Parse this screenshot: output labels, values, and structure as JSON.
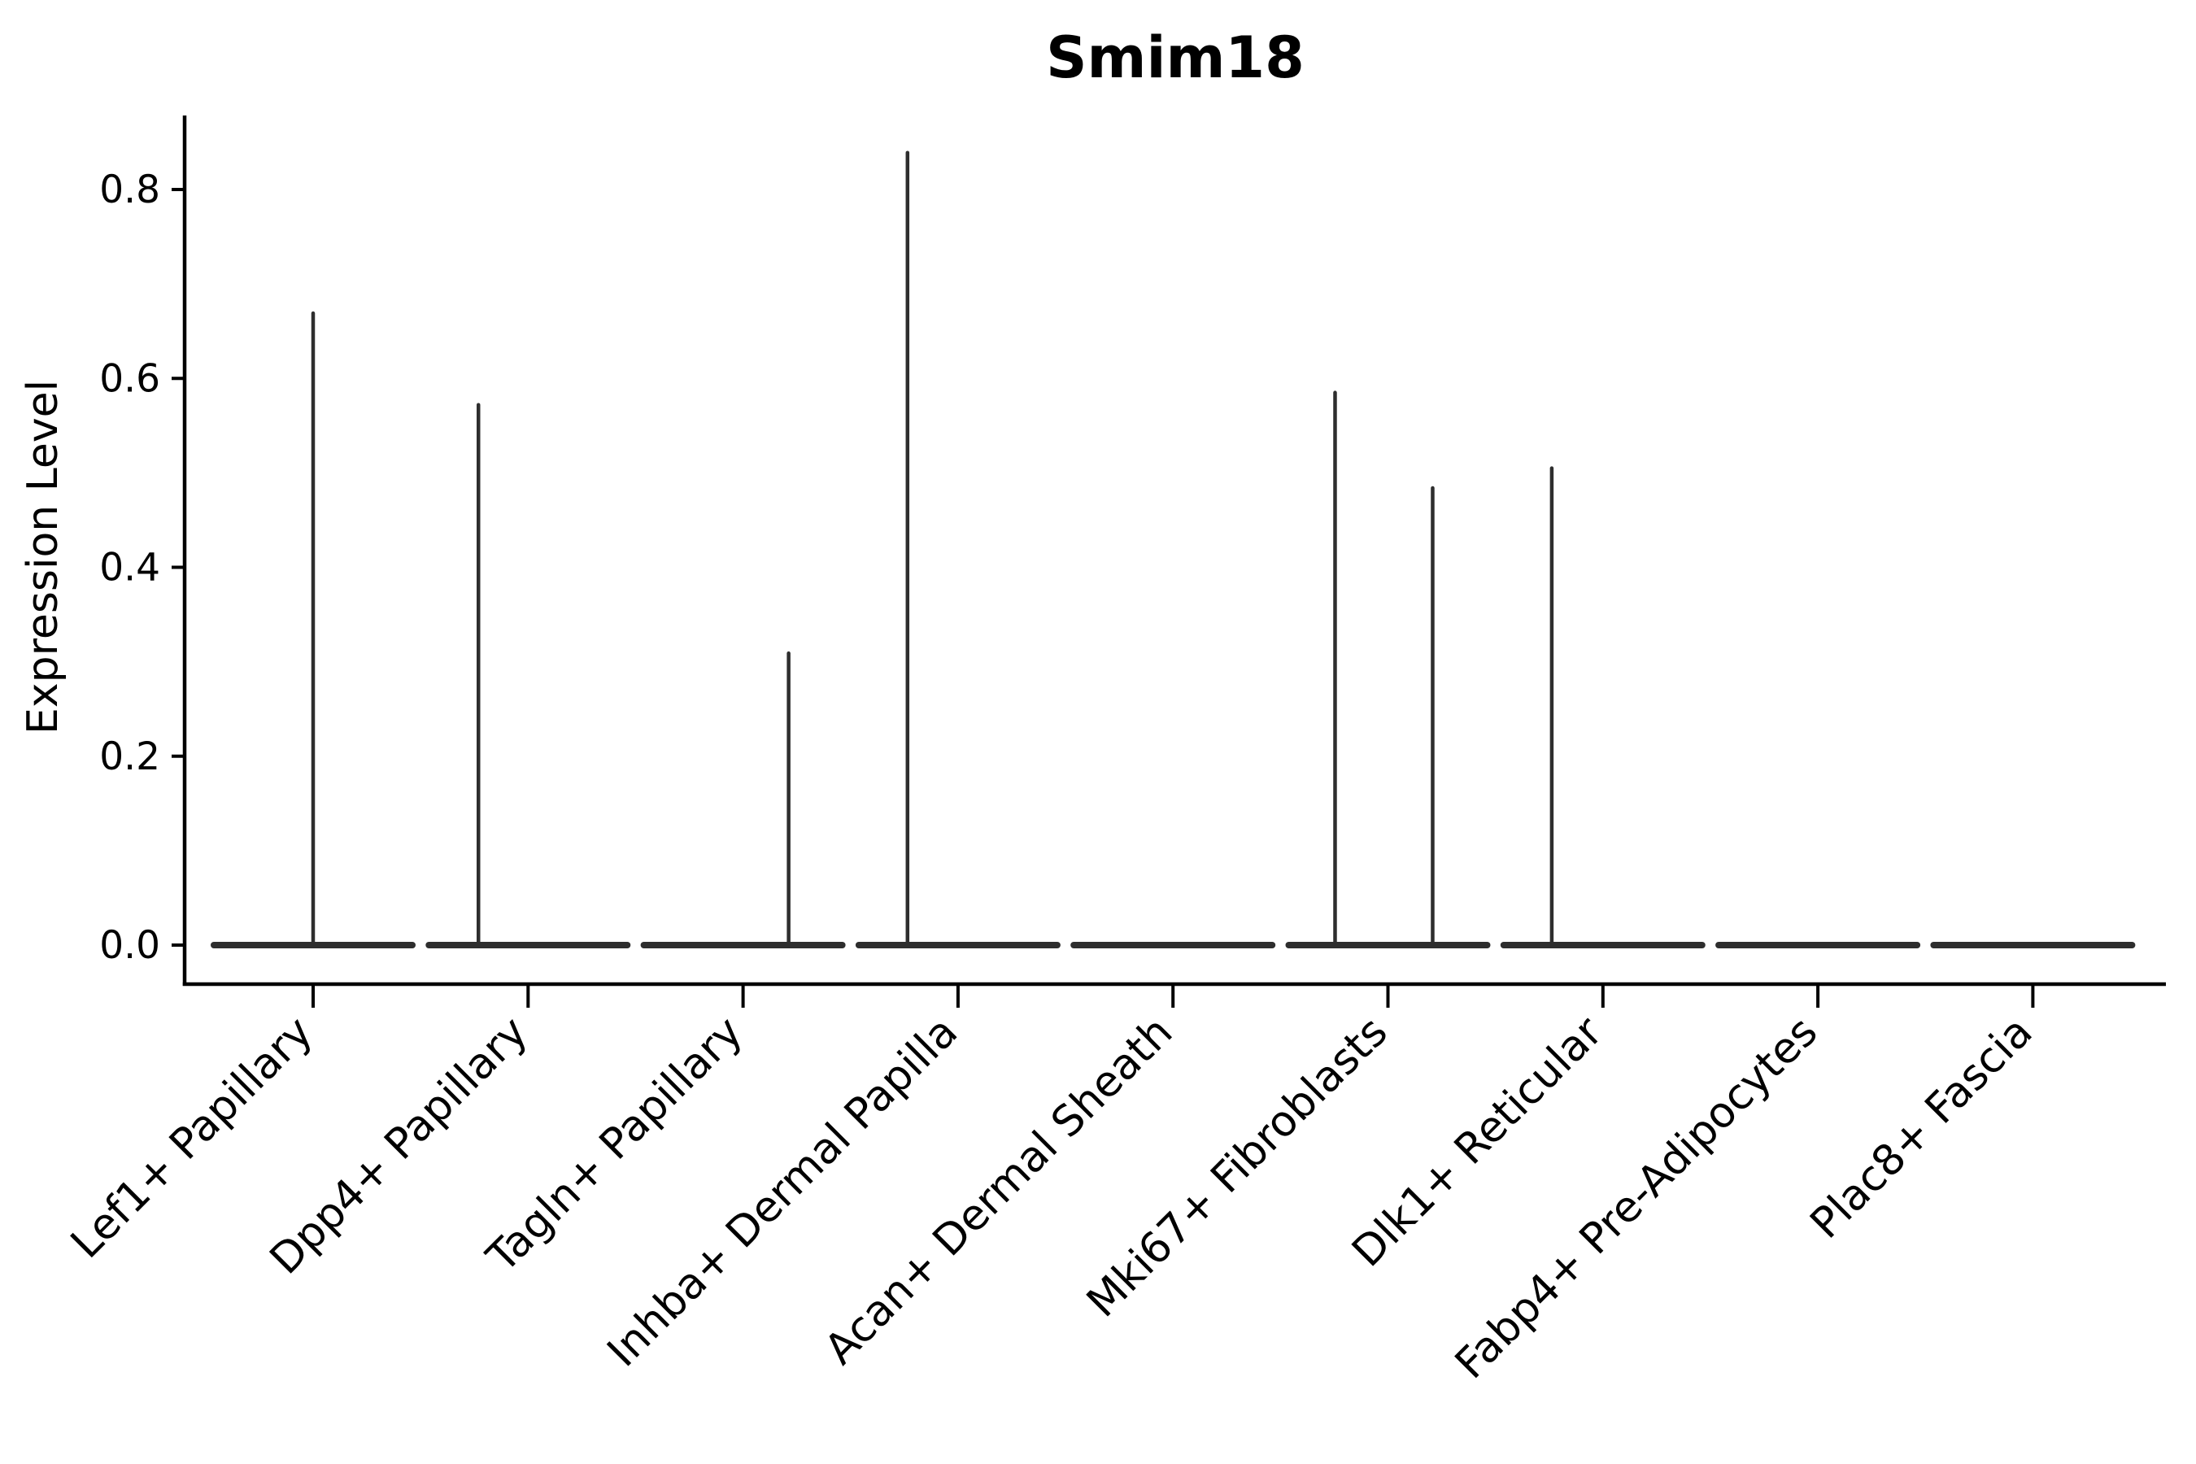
{
  "page": {
    "background": "#ffffff"
  },
  "chart_data": {
    "type": "violin",
    "title": "Smim18",
    "xlabel": "",
    "ylabel": "Expression Level",
    "ytick_labels": [
      "0.0",
      "0.2",
      "0.4",
      "0.6",
      "0.8"
    ],
    "ytick_values": [
      0.0,
      0.2,
      0.4,
      0.6,
      0.8
    ],
    "ylim": [
      -0.041,
      0.878
    ],
    "grid": false,
    "legend": null,
    "colors": {
      "violin_line": "#2e2e2e",
      "axis_line": "#000000",
      "text": "#000000",
      "background": "#ffffff"
    },
    "categories": [
      "Lef1+ Papillary",
      "Dpp4+ Papillary",
      "Tagln+ Papillary",
      "Inhba+ Dermal Papilla",
      "Acan+ Dermal Sheath",
      "Mki67+ Fibroblasts",
      "Dlk1+ Reticular",
      "Fabp4+ Pre-Adipocytes",
      "Plac8+ Fascia"
    ],
    "violins": [
      {
        "category": "Lef1+ Papillary",
        "baseline_value": 0.0,
        "spikes": [
          {
            "x_offset": 0.0,
            "value": 0.669
          }
        ]
      },
      {
        "category": "Dpp4+ Papillary",
        "baseline_value": 0.0,
        "spikes": [
          {
            "x_offset": -0.231,
            "value": 0.572
          }
        ]
      },
      {
        "category": "Tagln+ Papillary",
        "baseline_value": 0.0,
        "spikes": [
          {
            "x_offset": 0.212,
            "value": 0.309
          }
        ]
      },
      {
        "category": "Inhba+ Dermal Papilla",
        "baseline_value": 0.0,
        "spikes": [
          {
            "x_offset": -0.235,
            "value": 0.839
          }
        ]
      },
      {
        "category": "Acan+ Dermal Sheath",
        "baseline_value": 0.0,
        "spikes": []
      },
      {
        "category": "Mki67+ Fibroblasts",
        "baseline_value": 0.0,
        "spikes": [
          {
            "x_offset": -0.246,
            "value": 0.585
          },
          {
            "x_offset": 0.208,
            "value": 0.484
          }
        ]
      },
      {
        "category": "Dlk1+ Reticular",
        "baseline_value": 0.0,
        "spikes": [
          {
            "x_offset": -0.238,
            "value": 0.505
          }
        ]
      },
      {
        "category": "Fabp4+ Pre-Adipocytes",
        "baseline_value": 0.0,
        "spikes": []
      },
      {
        "category": "Plac8+ Fascia",
        "baseline_value": 0.0,
        "spikes": []
      }
    ]
  }
}
